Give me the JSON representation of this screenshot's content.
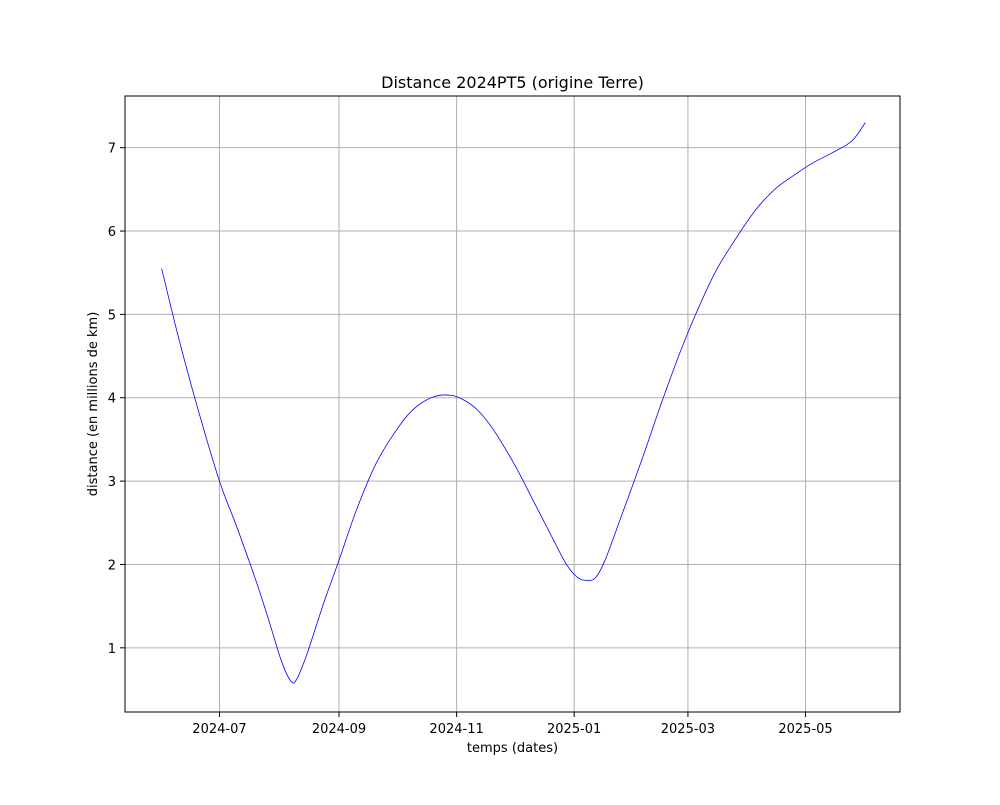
{
  "chart_data": {
    "type": "line",
    "title": "Distance 2024PT5 (origine Terre)",
    "xlabel": "temps (dates)",
    "ylabel": "distance (en millions de km)",
    "x_ticks": [
      "2024-07",
      "2024-09",
      "2024-11",
      "2025-01",
      "2025-03",
      "2025-05"
    ],
    "x_tick_dates": [
      "2024-07-01",
      "2024-09-01",
      "2024-11-01",
      "2025-01-01",
      "2025-03-01",
      "2025-05-01"
    ],
    "y_ticks": [
      "1",
      "2",
      "3",
      "4",
      "5",
      "6",
      "7"
    ],
    "y_tick_values": [
      1,
      2,
      3,
      4,
      5,
      6,
      7
    ],
    "xlim": [
      "2024-05-13",
      "2025-06-19"
    ],
    "ylim": [
      0.23,
      7.62
    ],
    "grid": true,
    "line_color": "#0000ff",
    "series": [
      {
        "x": [
          "2024-06-01",
          "2024-06-10",
          "2024-06-20",
          "2024-07-01",
          "2024-07-10",
          "2024-07-20",
          "2024-07-27",
          "2024-08-02",
          "2024-08-07",
          "2024-08-10",
          "2024-08-15",
          "2024-08-20",
          "2024-08-25",
          "2024-09-01",
          "2024-09-10",
          "2024-09-20",
          "2024-10-01",
          "2024-10-10",
          "2024-10-20",
          "2024-10-29",
          "2024-11-05",
          "2024-11-12",
          "2024-11-20",
          "2024-12-01",
          "2024-12-10",
          "2024-12-20",
          "2024-12-28",
          "2025-01-03",
          "2025-01-08",
          "2025-01-12",
          "2025-01-17",
          "2025-01-25",
          "2025-02-05",
          "2025-02-15",
          "2025-02-25",
          "2025-03-05",
          "2025-03-15",
          "2025-03-25",
          "2025-04-05",
          "2025-04-15",
          "2025-04-25",
          "2025-05-05",
          "2025-05-15",
          "2025-05-25",
          "2025-06-01"
        ],
        "y": [
          5.55,
          4.7,
          3.85,
          3.0,
          2.45,
          1.8,
          1.3,
          0.85,
          0.6,
          0.62,
          0.9,
          1.25,
          1.6,
          2.05,
          2.65,
          3.2,
          3.62,
          3.87,
          4.01,
          4.03,
          3.97,
          3.85,
          3.62,
          3.2,
          2.8,
          2.35,
          2.0,
          1.84,
          1.81,
          1.84,
          2.05,
          2.55,
          3.25,
          3.92,
          4.55,
          5.0,
          5.5,
          5.88,
          6.25,
          6.5,
          6.67,
          6.82,
          6.94,
          7.08,
          7.3
        ]
      }
    ]
  }
}
